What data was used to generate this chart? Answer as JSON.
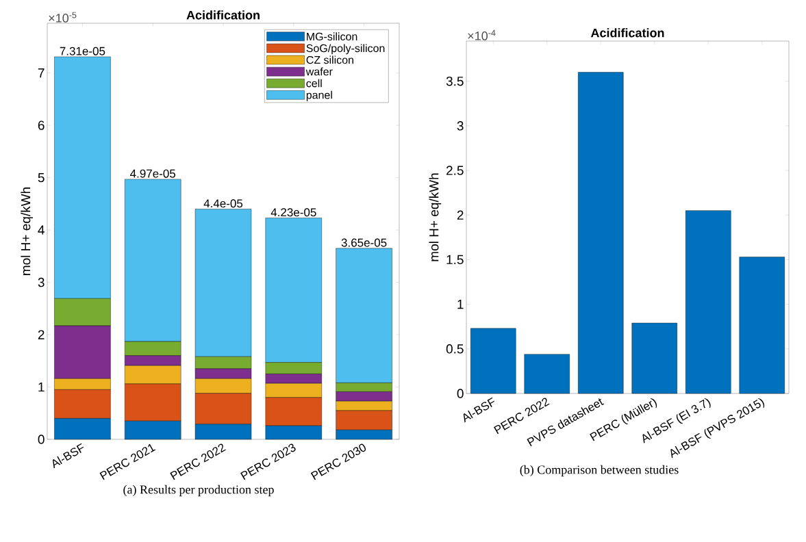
{
  "chart_data": [
    {
      "type": "bar",
      "title": "Acidification",
      "ylabel": "mol H+ eq/kWh",
      "stacked": true,
      "legend": "top right",
      "categories": [
        "Al-BSF",
        "PERC 2021",
        "PERC 2022",
        "PERC 2023",
        "PERC 2030"
      ],
      "series": [
        {
          "name": "MG-silicon",
          "color": "#0072bd",
          "values": [
            0.4,
            0.35,
            0.29,
            0.26,
            0.18
          ]
        },
        {
          "name": "SoG/poly-silicon",
          "color": "#d95319",
          "values": [
            0.55,
            0.71,
            0.59,
            0.54,
            0.37
          ]
        },
        {
          "name": "CZ silicon",
          "color": "#edb120",
          "values": [
            0.21,
            0.35,
            0.28,
            0.27,
            0.18
          ]
        },
        {
          "name": "wafer",
          "color": "#7e2f8e",
          "values": [
            1.01,
            0.19,
            0.19,
            0.18,
            0.18
          ]
        },
        {
          "name": "cell",
          "color": "#77ac30",
          "values": [
            0.52,
            0.27,
            0.23,
            0.22,
            0.17
          ]
        },
        {
          "name": "panel",
          "color": "#4dbeee",
          "values": [
            4.62,
            3.1,
            2.82,
            2.76,
            2.57
          ]
        }
      ],
      "ylim": [
        0,
        7.95
      ],
      "yticks": [
        0,
        1,
        2,
        3,
        4,
        5,
        6,
        7
      ],
      "annotations": [
        "×10$^{-5}$",
        "(a) Results per production step",
        {
          "text": "7.31e-05",
          "x": "Al-BSF",
          "y": 7.31
        },
        {
          "text": "4.97e-05",
          "x": "PERC 2021",
          "y": 4.97
        },
        {
          "text": "4.4e-05",
          "x": "PERC 2022",
          "y": 4.4
        },
        {
          "text": "4.23e-05",
          "x": "PERC 2023",
          "y": 4.23
        },
        {
          "text": "3.65e-05",
          "x": "PERC 2030",
          "y": 3.65
        }
      ]
    },
    {
      "type": "bar",
      "title": "Acidification",
      "ylabel": "mol H+ eq/kWh",
      "color": "#0072bd",
      "categories": [
        "Al-BSF",
        "PERC 2022",
        "PVPS datasheet",
        "PERC (Müller)",
        "Al-BSF (EI 3.7)",
        "Al-BSF (PVPS 2015)"
      ],
      "values": [
        0.73,
        0.44,
        3.6,
        0.79,
        2.05,
        1.53
      ],
      "ylim": [
        0,
        3.95
      ],
      "yticks": [
        0,
        0.5,
        1,
        1.5,
        2,
        2.5,
        3,
        3.5
      ],
      "annotations": [
        "×10$^{-4}$",
        "(b) Comparison between studies"
      ]
    }
  ]
}
